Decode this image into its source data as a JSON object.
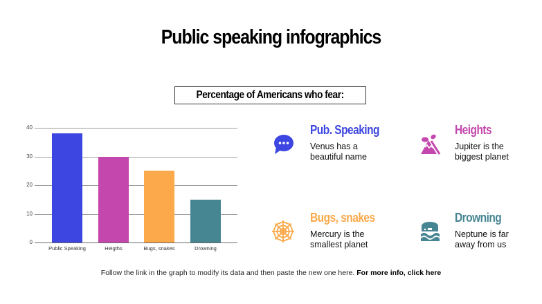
{
  "title": "Public speaking infographics",
  "subtitle": "Percentage of Americans who fear:",
  "chart_data": {
    "type": "bar",
    "title": "",
    "categories": [
      "Public Speaking",
      "Heigths",
      "Bugs, snakes",
      "Drowning"
    ],
    "values": [
      38,
      30,
      25,
      15
    ],
    "colors": [
      "#3d46e0",
      "#c447ad",
      "#fba94b",
      "#468592"
    ],
    "xlabel": "",
    "ylabel": "",
    "ylim": [
      0,
      40
    ],
    "yticks": [
      "40",
      "30",
      "20",
      "10",
      "0"
    ],
    "grid": true,
    "legend": "none"
  },
  "cards": [
    {
      "heading": "Pub. Speaking",
      "text": "Venus has a beautiful name",
      "color": "#3d46e0",
      "icon": "speech-bubble-icon"
    },
    {
      "heading": "Heights",
      "text": "Jupiter is the biggest planet",
      "color": "#c447ad",
      "icon": "mountain-icon"
    },
    {
      "heading": "Bugs, snakes",
      "text": "Mercury is the smallest planet",
      "color": "#fba94b",
      "icon": "spider-web-icon"
    },
    {
      "heading": "Drowning",
      "text": "Neptune is far away from us",
      "color": "#468592",
      "icon": "wave-icon"
    }
  ],
  "footer": {
    "text": "Follow the link in the graph to modify its data and then paste the new one here. ",
    "link": "For more info, click here"
  }
}
